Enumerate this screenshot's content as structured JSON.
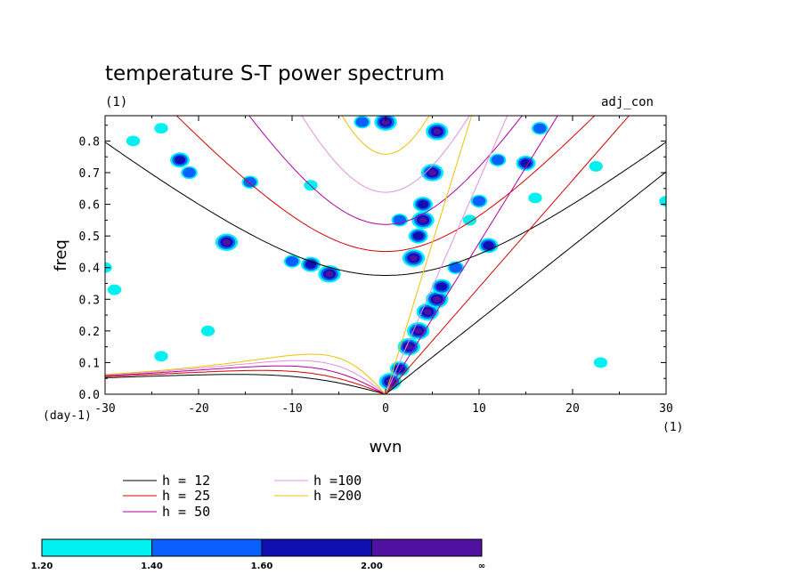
{
  "chart_data": {
    "type": "heatmap",
    "title": "temperature S-T power spectrum",
    "subtitle": "(1)",
    "run_label": "adj_con",
    "xlabel": "wvn",
    "ylabel": "freq",
    "x_unit": "(1)",
    "y_unit": "(day-1)",
    "xlim": [
      -30,
      30
    ],
    "ylim": [
      0.0,
      0.88
    ],
    "x_ticks": [
      "-30",
      "-20",
      "-10",
      "0",
      "10",
      "20",
      "30"
    ],
    "y_ticks": [
      "0.0",
      "0.1",
      "0.2",
      "0.3",
      "0.4",
      "0.5",
      "0.6",
      "0.7",
      "0.8"
    ],
    "dispersion_curves": [
      {
        "label": "h = 12",
        "h": 12,
        "color": "#000000"
      },
      {
        "label": "h = 25",
        "h": 25,
        "color": "#d40000"
      },
      {
        "label": "h = 50",
        "h": 50,
        "color": "#b000a0"
      },
      {
        "label": "h =100",
        "h": 100,
        "color": "#e090e0"
      },
      {
        "label": "h =200",
        "h": 200,
        "color": "#f0c000"
      }
    ],
    "colorbar": {
      "levels": [
        "1.20",
        "1.40",
        "1.60",
        "2.00",
        "∞"
      ],
      "colors": [
        "#00f0f0",
        "#0a60ff",
        "#1010b0",
        "#5010a0"
      ]
    },
    "power_blobs": [
      {
        "x": 0.5,
        "y": 0.04,
        "level": 3
      },
      {
        "x": 1.5,
        "y": 0.08,
        "level": 2
      },
      {
        "x": 2.5,
        "y": 0.15,
        "level": 3
      },
      {
        "x": 3.5,
        "y": 0.2,
        "level": 3
      },
      {
        "x": 4.5,
        "y": 0.26,
        "level": 3
      },
      {
        "x": 5.5,
        "y": 0.3,
        "level": 3
      },
      {
        "x": 6.0,
        "y": 0.34,
        "level": 2
      },
      {
        "x": 3.0,
        "y": 0.43,
        "level": 3
      },
      {
        "x": 3.5,
        "y": 0.5,
        "level": 2
      },
      {
        "x": 1.5,
        "y": 0.55,
        "level": 1
      },
      {
        "x": 4.0,
        "y": 0.55,
        "level": 3
      },
      {
        "x": 4.0,
        "y": 0.6,
        "level": 2
      },
      {
        "x": 5.0,
        "y": 0.7,
        "level": 3
      },
      {
        "x": 5.5,
        "y": 0.83,
        "level": 3
      },
      {
        "x": 0.0,
        "y": 0.86,
        "level": 3
      },
      {
        "x": -2.5,
        "y": 0.86,
        "level": 1
      },
      {
        "x": -6.0,
        "y": 0.38,
        "level": 3
      },
      {
        "x": -8.0,
        "y": 0.41,
        "level": 2
      },
      {
        "x": -10.0,
        "y": 0.42,
        "level": 1
      },
      {
        "x": -17.0,
        "y": 0.48,
        "level": 3
      },
      {
        "x": -21.0,
        "y": 0.7,
        "level": 1
      },
      {
        "x": -27.0,
        "y": 0.8,
        "level": 0
      },
      {
        "x": -24.0,
        "y": 0.84,
        "level": 0
      },
      {
        "x": -22.0,
        "y": 0.74,
        "level": 2
      },
      {
        "x": -14.5,
        "y": 0.67,
        "level": 1
      },
      {
        "x": -8.0,
        "y": 0.66,
        "level": 0
      },
      {
        "x": 10.0,
        "y": 0.61,
        "level": 1
      },
      {
        "x": 12.0,
        "y": 0.74,
        "level": 1
      },
      {
        "x": 15.0,
        "y": 0.73,
        "level": 2
      },
      {
        "x": 16.0,
        "y": 0.62,
        "level": 0
      },
      {
        "x": 16.5,
        "y": 0.84,
        "level": 1
      },
      {
        "x": 11.0,
        "y": 0.47,
        "level": 2
      },
      {
        "x": 7.5,
        "y": 0.4,
        "level": 1
      },
      {
        "x": -30.0,
        "y": 0.4,
        "level": 0
      },
      {
        "x": -29.0,
        "y": 0.33,
        "level": 0
      },
      {
        "x": -19.0,
        "y": 0.2,
        "level": 0
      },
      {
        "x": -24.0,
        "y": 0.12,
        "level": 0
      },
      {
        "x": 9.0,
        "y": 0.55,
        "level": 0
      },
      {
        "x": 22.5,
        "y": 0.72,
        "level": 0
      },
      {
        "x": 23.0,
        "y": 0.1,
        "level": 0
      },
      {
        "x": 30.0,
        "y": 0.61,
        "level": 0
      }
    ]
  }
}
